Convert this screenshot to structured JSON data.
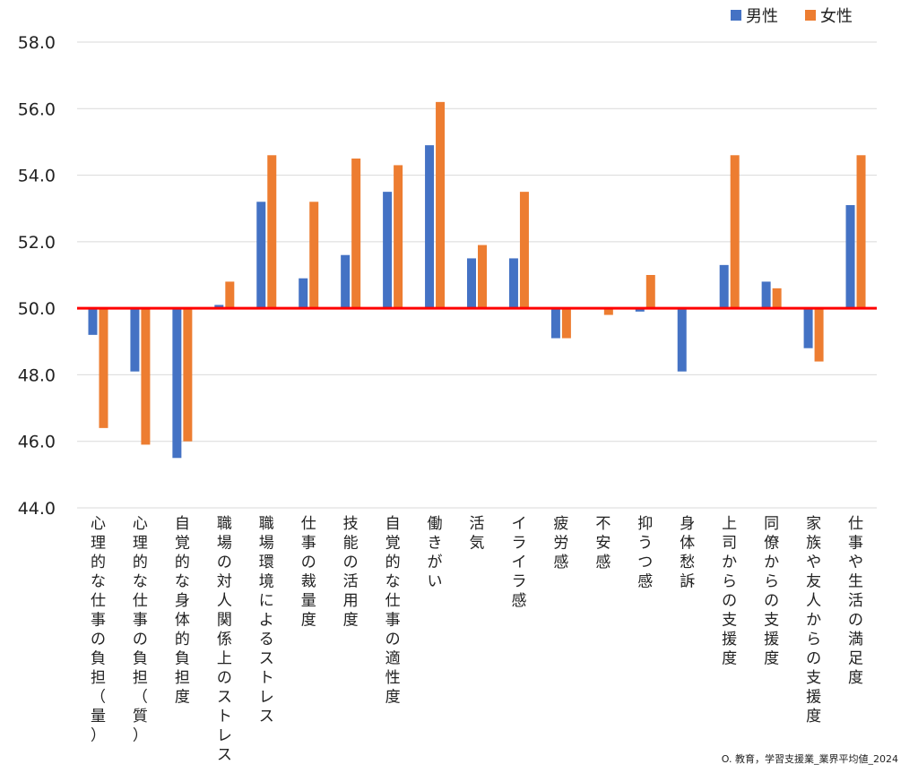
{
  "chart_data": {
    "type": "bar",
    "title": "",
    "xlabel": "",
    "ylabel": "",
    "ylim": [
      44.0,
      58.0
    ],
    "yticks": [
      "44.0",
      "46.0",
      "48.0",
      "50.0",
      "52.0",
      "54.0",
      "56.0",
      "58.0"
    ],
    "baseline": 50.0,
    "grid": true,
    "legend_position": "top-right",
    "categories": [
      "心理的な仕事の負担（量）",
      "心理的な仕事の負担（質）",
      "自覚的な身体的負担度",
      "職場の対人関係上のストレス",
      "職場環境によるストレス",
      "仕事の裁量度",
      "技能の活用度",
      "自覚的な仕事の適性度",
      "働きがい",
      "活気",
      "イライラ感",
      "疲労感",
      "不安感",
      "抑うつ感",
      "身体愁訴",
      "上司からの支援度",
      "同僚からの支援度",
      "家族や友人からの支援度",
      "仕事や生活の満足度"
    ],
    "series": [
      {
        "name": "男性",
        "color": "#4472C4",
        "values": [
          49.2,
          48.1,
          45.5,
          50.1,
          53.2,
          50.9,
          51.6,
          53.5,
          54.9,
          51.5,
          51.5,
          49.1,
          50.0,
          49.9,
          48.1,
          51.3,
          50.8,
          48.8,
          53.1
        ]
      },
      {
        "name": "女性",
        "color": "#ED7D31",
        "values": [
          46.4,
          45.9,
          46.0,
          50.8,
          54.6,
          53.2,
          54.5,
          54.3,
          56.2,
          51.9,
          53.5,
          49.1,
          49.8,
          51.0,
          50.0,
          54.6,
          50.6,
          48.4,
          54.6
        ]
      }
    ]
  },
  "colors": {
    "baseline": "#FF0000",
    "grid": "#D9D9D9"
  },
  "footnote": "O. 教育，学習支援業_業界平均値_2024"
}
